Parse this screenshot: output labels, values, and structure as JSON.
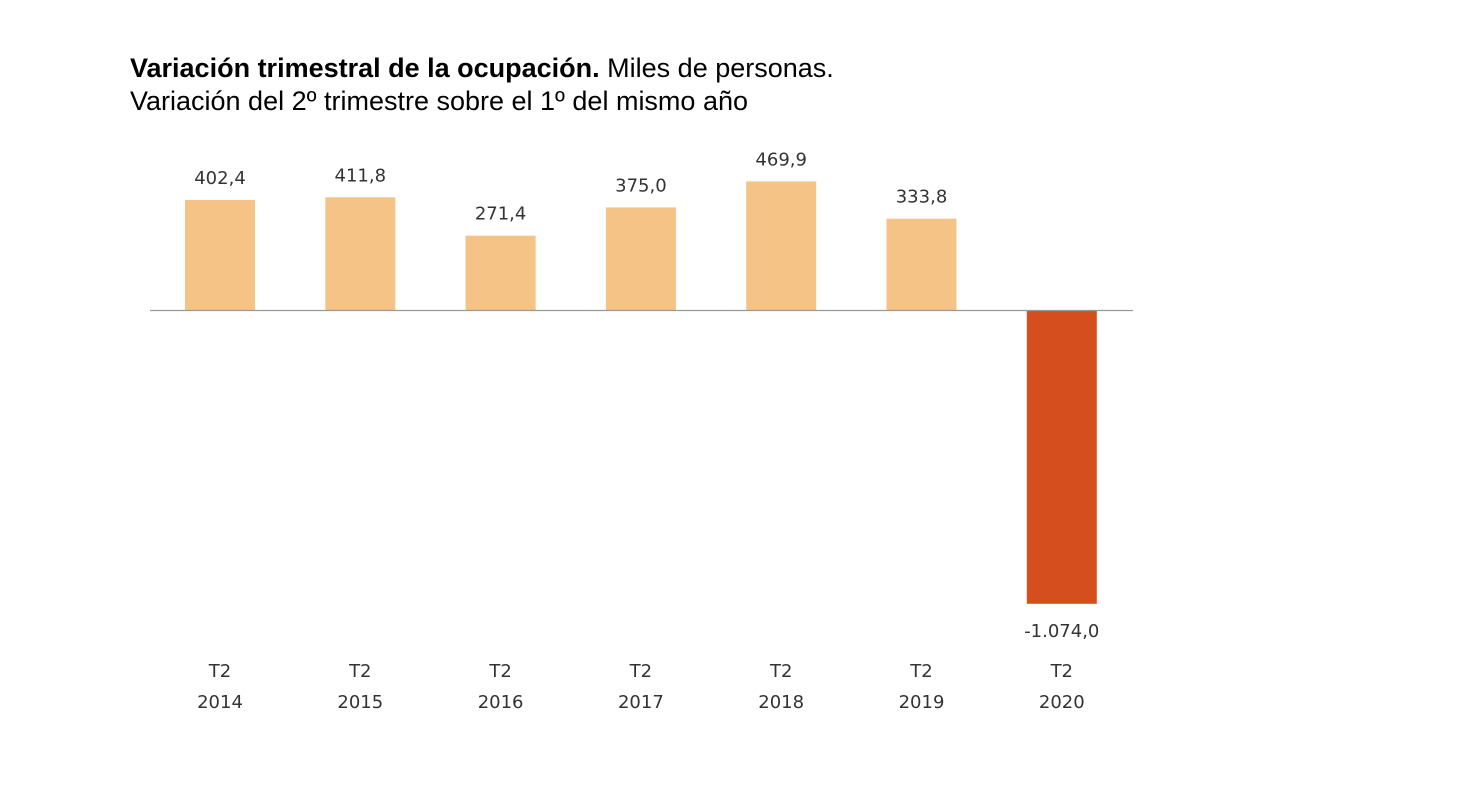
{
  "title": {
    "bold": "Variación trimestral de la ocupación.",
    "rest": " Miles de personas.",
    "subtitle": "Variación del 2º trimestre sobre el 1º del mismo año"
  },
  "colors": {
    "positive": "#F4C385",
    "negative": "#D44E1E",
    "axis": "#999999"
  },
  "chart_data": {
    "type": "bar",
    "title": "Variación trimestral de la ocupación. Miles de personas. Variación del 2º trimestre sobre el 1º del mismo año",
    "categories": [
      {
        "quarter": "T2",
        "year": "2014"
      },
      {
        "quarter": "T2",
        "year": "2015"
      },
      {
        "quarter": "T2",
        "year": "2016"
      },
      {
        "quarter": "T2",
        "year": "2017"
      },
      {
        "quarter": "T2",
        "year": "2018"
      },
      {
        "quarter": "T2",
        "year": "2019"
      },
      {
        "quarter": "T2",
        "year": "2020"
      }
    ],
    "values": [
      402.4,
      411.8,
      271.4,
      375.0,
      469.9,
      333.8,
      -1074.0
    ],
    "value_labels": [
      "402,4",
      "411,8",
      "271,4",
      "375,0",
      "469,9",
      "333,8",
      "-1.074,0"
    ],
    "xlabel": "",
    "ylabel": "Miles de personas",
    "grid": false
  }
}
